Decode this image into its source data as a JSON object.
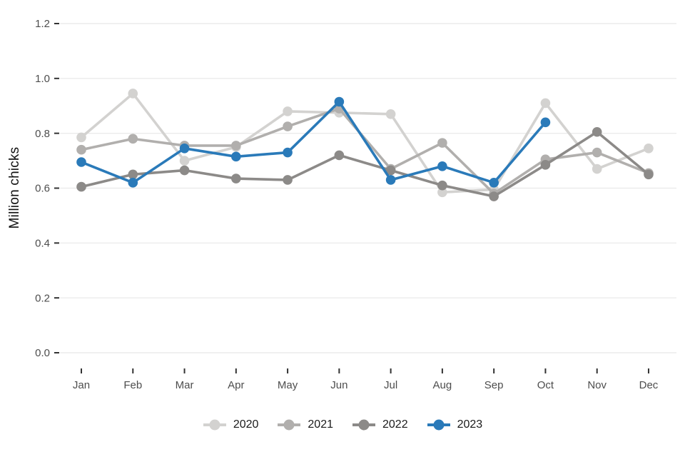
{
  "chart_data": {
    "type": "line",
    "title": "",
    "ylabel": "Million chicks",
    "xlabel": "",
    "ylim": [
      0,
      1.2
    ],
    "ytick_labels": [
      "0.0",
      "0.2",
      "0.4",
      "0.6",
      "0.8",
      "1.0",
      "1.2"
    ],
    "yticks": [
      0.0,
      0.2,
      0.4,
      0.6,
      0.8,
      1.0,
      1.2
    ],
    "grid": true,
    "legend_position": "bottom",
    "categories": [
      "Jan",
      "Feb",
      "Mar",
      "Apr",
      "May",
      "Jun",
      "Jul",
      "Aug",
      "Sep",
      "Oct",
      "Nov",
      "Dec"
    ],
    "series": [
      {
        "name": "2020",
        "color": "#d3d2d0",
        "values": [
          0.785,
          0.945,
          0.7,
          0.75,
          0.88,
          0.875,
          0.87,
          0.585,
          0.595,
          0.91,
          0.67,
          0.745
        ]
      },
      {
        "name": "2021",
        "color": "#b1afad",
        "values": [
          0.74,
          0.78,
          0.755,
          0.755,
          0.825,
          0.89,
          0.67,
          0.765,
          0.58,
          0.705,
          0.73,
          0.655
        ]
      },
      {
        "name": "2022",
        "color": "#8c8a88",
        "values": [
          0.605,
          0.65,
          0.665,
          0.635,
          0.63,
          0.72,
          0.665,
          0.61,
          0.57,
          0.685,
          0.805,
          0.65
        ]
      },
      {
        "name": "2023",
        "color": "#2a7ab9",
        "values": [
          0.695,
          0.62,
          0.745,
          0.715,
          0.73,
          0.915,
          0.63,
          0.68,
          0.62,
          0.84,
          null,
          null
        ]
      }
    ],
    "colors": {
      "gridline": "#ebebeb",
      "tick": "#333333",
      "tick_label": "#4d4d4d",
      "axis_title": "#111111"
    }
  }
}
